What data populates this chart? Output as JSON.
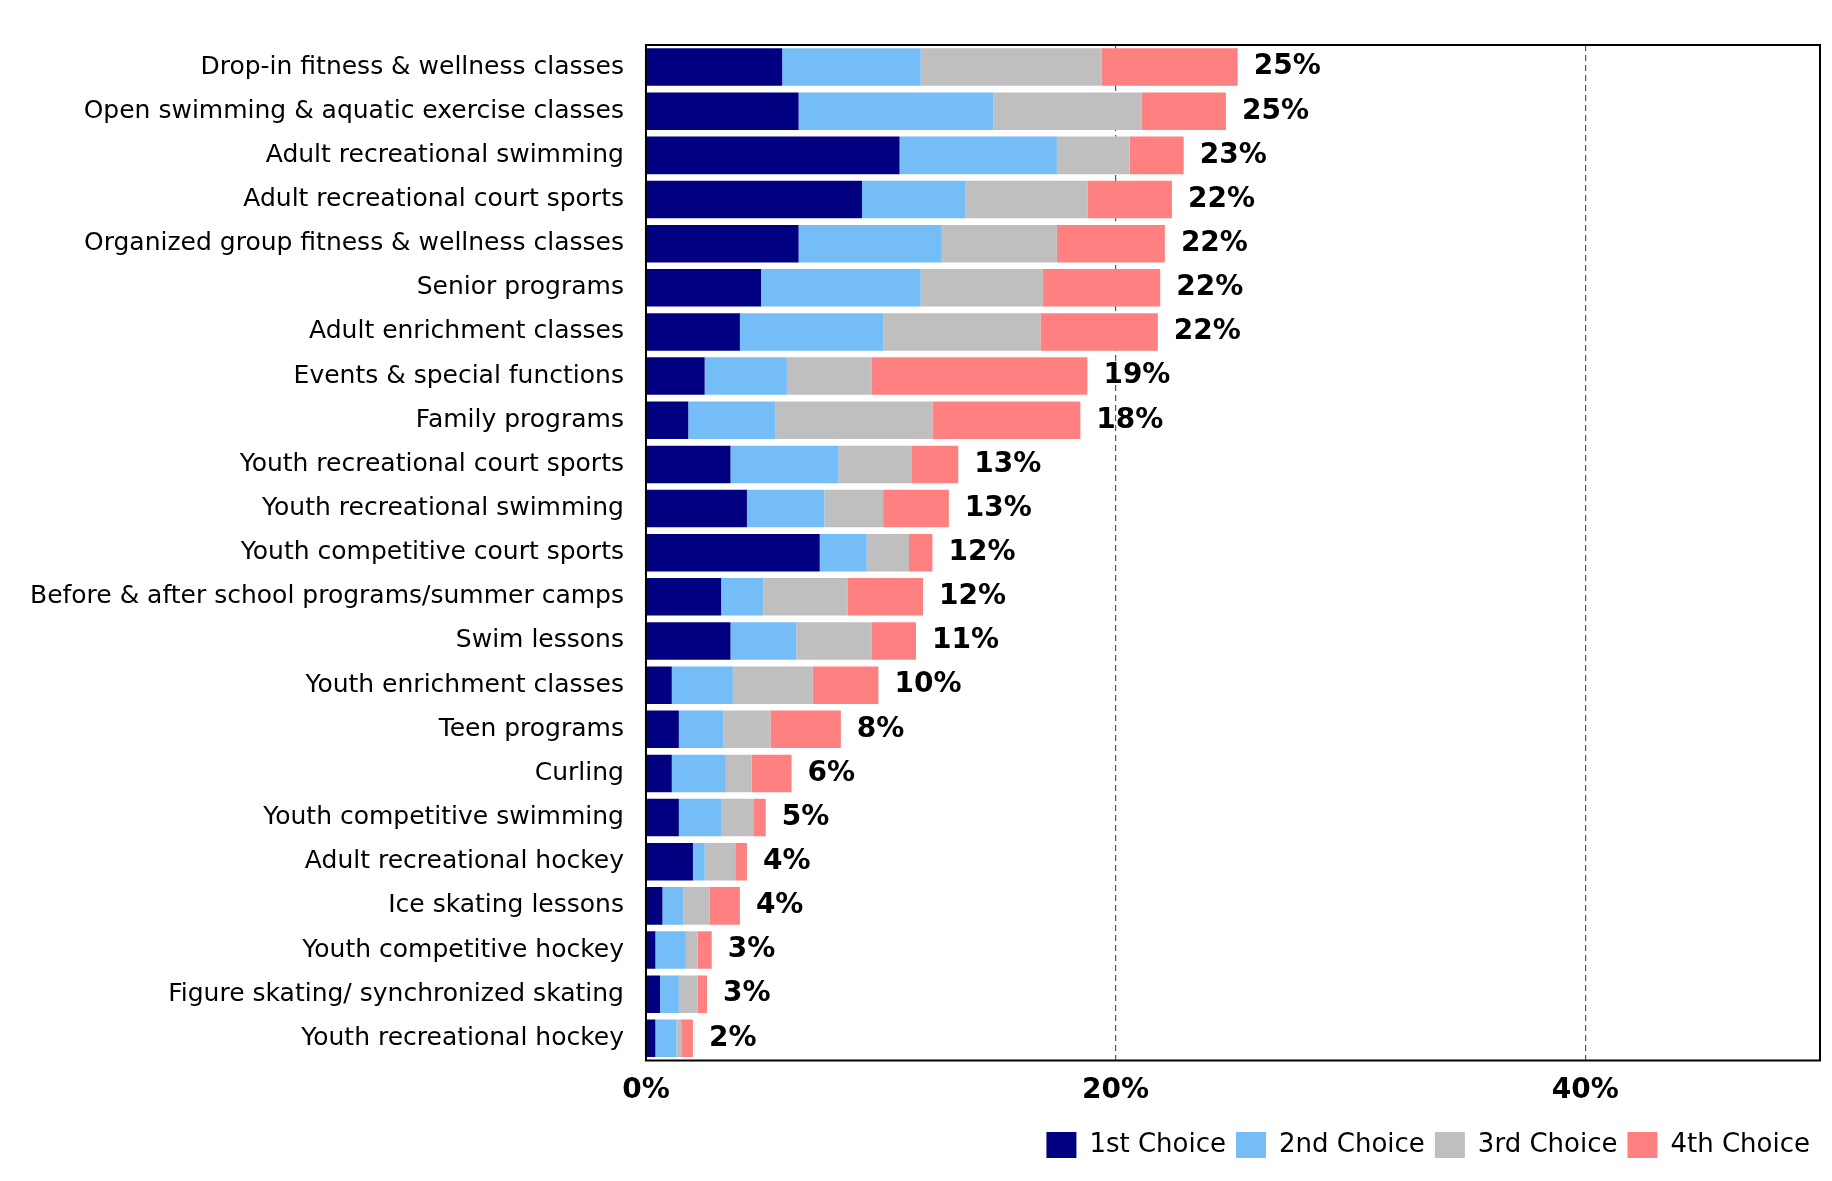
{
  "chart_data": {
    "type": "bar",
    "orientation": "horizontal",
    "stacked": true,
    "categories": [
      "Drop-in fitness & wellness classes",
      "Open swimming & aquatic exercise classes",
      "Adult recreational swimming",
      "Adult recreational court sports",
      "Organized group fitness & wellness classes",
      "Senior programs",
      "Adult enrichment classes",
      "Events & special functions",
      "Family programs",
      "Youth recreational court sports",
      "Youth recreational swimming",
      "Youth competitive court sports",
      "Before & after school programs/summer camps",
      "Swim lessons",
      "Youth enrichment classes",
      "Teen programs",
      "Curling",
      "Youth competitive swimming",
      "Adult recreational hockey",
      "Ice skating lessons",
      "Youth competitive hockey",
      "Figure skating/ synchronized skating",
      "Youth recreational hockey"
    ],
    "series": [
      {
        "name": "1st Choice",
        "color": "#000080",
        "values": [
          5.8,
          6.5,
          10.8,
          9.2,
          6.5,
          4.9,
          4.0,
          2.5,
          1.8,
          3.6,
          4.3,
          7.4,
          3.2,
          3.6,
          1.1,
          1.4,
          1.1,
          1.4,
          2.0,
          0.7,
          0.4,
          0.6,
          0.4
        ]
      },
      {
        "name": "2nd Choice",
        "color": "#75bdf7",
        "values": [
          5.9,
          8.3,
          6.7,
          4.4,
          6.1,
          6.8,
          6.1,
          3.5,
          3.7,
          4.6,
          3.3,
          2.0,
          1.8,
          2.8,
          2.6,
          1.9,
          2.3,
          1.8,
          0.5,
          0.9,
          1.3,
          0.8,
          0.9
        ]
      },
      {
        "name": "3rd Choice",
        "color": "#bfbfbf",
        "values": [
          7.7,
          6.3,
          3.1,
          5.2,
          4.9,
          5.2,
          6.7,
          3.6,
          6.7,
          3.1,
          2.5,
          1.8,
          3.6,
          3.2,
          3.4,
          2.0,
          1.1,
          1.4,
          1.3,
          1.1,
          0.5,
          0.8,
          0.2
        ]
      },
      {
        "name": "4th Choice",
        "color": "#ff8080",
        "values": [
          5.8,
          3.6,
          2.3,
          3.6,
          4.6,
          5.0,
          5.0,
          9.2,
          6.3,
          2.0,
          2.8,
          1.0,
          3.2,
          1.9,
          2.8,
          3.0,
          1.7,
          0.5,
          0.5,
          1.3,
          0.6,
          0.4,
          0.5
        ]
      }
    ],
    "totals": [
      "25%",
      "25%",
      "23%",
      "22%",
      "22%",
      "22%",
      "22%",
      "19%",
      "18%",
      "13%",
      "13%",
      "12%",
      "12%",
      "11%",
      "10%",
      "8%",
      "6%",
      "5%",
      "4%",
      "4%",
      "3%",
      "3%",
      "2%"
    ],
    "xlim": [
      0,
      50
    ],
    "xticks": [
      {
        "value": 0,
        "label": "0%"
      },
      {
        "value": 20,
        "label": "20%"
      },
      {
        "value": 40,
        "label": "40%"
      }
    ],
    "grid": "x",
    "legend": "bottom right"
  }
}
